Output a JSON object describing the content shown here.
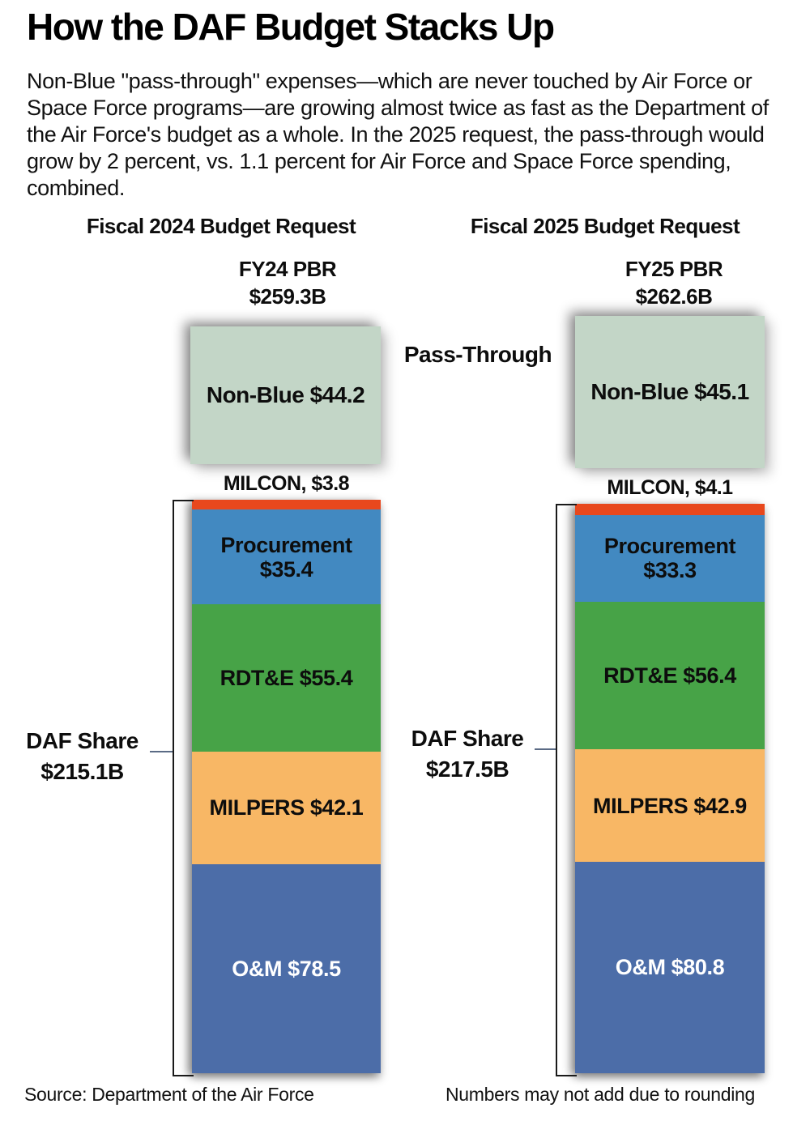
{
  "header": {
    "title": "How the DAF Budget Stacks Up",
    "subtitle": "Non-Blue \"pass-through\" expenses—which are never touched by Air Force or Space Force programs—are growing almost twice as fast as the Department of the Air Force's budget as a whole. In the 2025 request, the pass-through would grow by 2 percent, vs. 1.1 percent for Air Force and Space Force spending, combined."
  },
  "labels": {
    "pass_through": "Pass-Through"
  },
  "footer": {
    "source": "Source: Department of the Air Force",
    "note": "Numbers may not add due to rounding"
  },
  "colors": {
    "non_blue": "#c3d6c7",
    "milcon": "#e8481d",
    "procurement": "#4289c1",
    "rdte": "#47a347",
    "milpers": "#f8b765",
    "om": "#4c6da8",
    "bracket": "#1a1a1a",
    "connector": "#5b6b85",
    "text_dark": "#0d0d0d",
    "text_light": "#ffffff"
  },
  "chart_data": {
    "type": "bar",
    "stacked": true,
    "unit": "USD billions",
    "legend_position": "none",
    "grid": false,
    "charts": [
      {
        "column_header": "Fiscal 2024 Budget Request",
        "total_label": "FY24 PBR",
        "total_value_label": "$259.3B",
        "total_value": 259.3,
        "pass_through": {
          "label": "Non-Blue $44.2",
          "name": "Non-Blue",
          "value": 44.2,
          "color": "#c3d6c7"
        },
        "daf_share": {
          "label": "DAF Share",
          "value_label": "$215.1B",
          "value": 215.1
        },
        "milcon_label": "MILCON, $3.8",
        "segments": [
          {
            "name": "MILCON",
            "value": 3.8,
            "label_lines": [],
            "color": "#e8481d",
            "text_color": "#0d0d0d"
          },
          {
            "name": "Procurement",
            "value": 35.4,
            "label_lines": [
              "Procurement",
              "$35.4"
            ],
            "color": "#4289c1",
            "text_color": "#0d0d0d"
          },
          {
            "name": "RDT&E",
            "value": 55.4,
            "label_lines": [
              "RDT&E $55.4"
            ],
            "color": "#47a347",
            "text_color": "#0d0d0d"
          },
          {
            "name": "MILPERS",
            "value": 42.1,
            "label_lines": [
              "MILPERS $42.1"
            ],
            "color": "#f8b765",
            "text_color": "#0d0d0d"
          },
          {
            "name": "O&M",
            "value": 78.5,
            "label_lines": [
              "O&M $78.5"
            ],
            "color": "#4c6da8",
            "text_color": "#ffffff"
          }
        ]
      },
      {
        "column_header": "Fiscal 2025 Budget Request",
        "total_label": "FY25 PBR",
        "total_value_label": "$262.6B",
        "total_value": 262.6,
        "pass_through": {
          "label": "Non-Blue $45.1",
          "name": "Non-Blue",
          "value": 45.1,
          "color": "#c3d6c7"
        },
        "daf_share": {
          "label": "DAF Share",
          "value_label": "$217.5B",
          "value": 217.5
        },
        "milcon_label": "MILCON, $4.1",
        "segments": [
          {
            "name": "MILCON",
            "value": 4.1,
            "label_lines": [],
            "color": "#e8481d",
            "text_color": "#0d0d0d"
          },
          {
            "name": "Procurement",
            "value": 33.3,
            "label_lines": [
              "Procurement",
              "$33.3"
            ],
            "color": "#4289c1",
            "text_color": "#0d0d0d"
          },
          {
            "name": "RDT&E",
            "value": 56.4,
            "label_lines": [
              "RDT&E $56.4"
            ],
            "color": "#47a347",
            "text_color": "#0d0d0d"
          },
          {
            "name": "MILPERS",
            "value": 42.9,
            "label_lines": [
              "MILPERS $42.9"
            ],
            "color": "#f8b765",
            "text_color": "#0d0d0d"
          },
          {
            "name": "O&M",
            "value": 80.8,
            "label_lines": [
              "O&M $80.8"
            ],
            "color": "#4c6da8",
            "text_color": "#ffffff"
          }
        ]
      }
    ]
  }
}
